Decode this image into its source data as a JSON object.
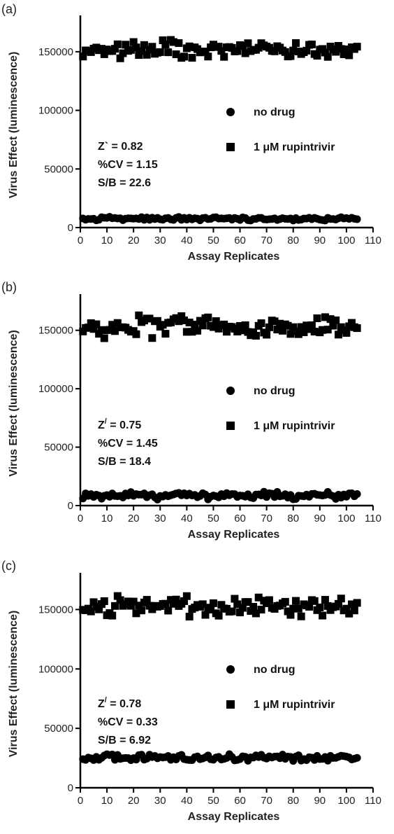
{
  "chart_data": [
    {
      "type": "scatter",
      "panel_label": "(a)",
      "xlabel": "Assay Replicates",
      "ylabel": "Virus Effect (luminescence)",
      "xlim": [
        0,
        110
      ],
      "ylim": [
        0,
        175000
      ],
      "xticks": [
        "0",
        "10",
        "20",
        "30",
        "40",
        "50",
        "60",
        "70",
        "80",
        "90",
        "100",
        "110"
      ],
      "yticks": [
        "0",
        "50000",
        "100000",
        "150000"
      ],
      "legend": {
        "placement": "middle-right",
        "entries": [
          {
            "marker": "circle",
            "label": "no drug"
          },
          {
            "marker": "square",
            "label": "1 μM rupintrivir"
          }
        ]
      },
      "stats": [
        {
          "lhs": "Z`",
          "sup": "",
          "rest": " = 0.82"
        },
        {
          "lhs": "%CV = 1.15",
          "sup": "",
          "rest": ""
        },
        {
          "lhs": "S/B = 22.6",
          "sup": "",
          "rest": ""
        }
      ],
      "series": [
        {
          "marker": "square",
          "base": 152000,
          "amp": 9000,
          "seed": 11
        },
        {
          "marker": "circle",
          "base": 7500,
          "amp": 1800,
          "seed": 12
        }
      ]
    },
    {
      "type": "scatter",
      "panel_label": "(b)",
      "xlabel": "Assay Replicates",
      "ylabel": "Virus Effect (luminescence)",
      "xlim": [
        0,
        110
      ],
      "ylim": [
        0,
        175000
      ],
      "xticks": [
        "0",
        "10",
        "20",
        "30",
        "40",
        "50",
        "60",
        "70",
        "80",
        "90",
        "100",
        "110"
      ],
      "yticks": [
        "0",
        "50000",
        "100000",
        "150000"
      ],
      "legend": {
        "placement": "middle-right",
        "entries": [
          {
            "marker": "circle",
            "label": "no drug"
          },
          {
            "marker": "square",
            "label": "1 μM rupintrivir"
          }
        ]
      },
      "stats": [
        {
          "lhs": "Z",
          "sup": "/",
          "rest": " = 0.75"
        },
        {
          "lhs": "%CV = 1.45",
          "sup": "",
          "rest": ""
        },
        {
          "lhs": "S/B = 18.4",
          "sup": "",
          "rest": ""
        }
      ],
      "series": [
        {
          "marker": "square",
          "base": 154000,
          "amp": 11000,
          "seed": 21
        },
        {
          "marker": "circle",
          "base": 8500,
          "amp": 3800,
          "seed": 22
        }
      ]
    },
    {
      "type": "scatter",
      "panel_label": "(c)",
      "xlabel": "Assay Replicates",
      "ylabel": "Virus Effect (luminescence)",
      "xlim": [
        0,
        110
      ],
      "ylim": [
        0,
        175000
      ],
      "xticks": [
        "0",
        "10",
        "20",
        "30",
        "40",
        "50",
        "60",
        "70",
        "80",
        "90",
        "100",
        "110"
      ],
      "yticks": [
        "0",
        "50000",
        "100000",
        "150000"
      ],
      "legend": {
        "placement": "middle-right",
        "entries": [
          {
            "marker": "circle",
            "label": "no drug"
          },
          {
            "marker": "square",
            "label": "1 μM rupintrivir"
          }
        ]
      },
      "stats": [
        {
          "lhs": "Z",
          "sup": "/",
          "rest": " = 0.78"
        },
        {
          "lhs": "%CV = 0.33",
          "sup": "",
          "rest": ""
        },
        {
          "lhs": "S/B = 6.92",
          "sup": "",
          "rest": ""
        }
      ],
      "series": [
        {
          "marker": "square",
          "base": 152000,
          "amp": 10000,
          "seed": 31
        },
        {
          "marker": "circle",
          "base": 25500,
          "amp": 3500,
          "seed": 32
        }
      ]
    }
  ]
}
